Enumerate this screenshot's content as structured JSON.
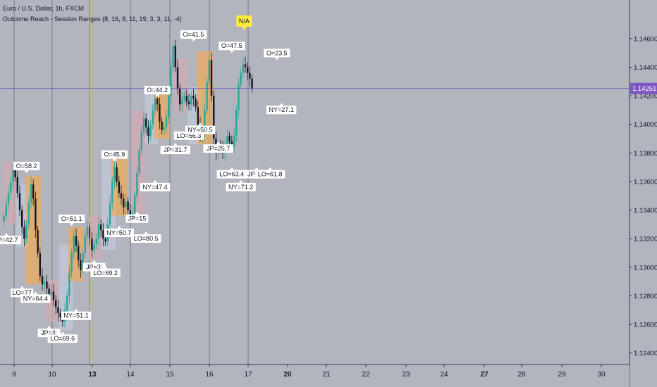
{
  "header": {
    "symbol": "Euro / U.S. Dollar, 1h, FXCM",
    "indicator": "Outcome Reach - Session Ranges (8, 16, 8, 11, 19, 3, 3, 11, -4)"
  },
  "price_tag": {
    "value": "1.14251",
    "color": "#7e57c2"
  },
  "colors": {
    "background": "#b2b5be",
    "up_candle": "#26a69a",
    "down_candle": "#131722",
    "asia_box": "#d9a8b0",
    "london_box": "#c3cee3",
    "ny_box": "#f0a95a",
    "cursor_h": "#5b4cc4",
    "cursor_v": "#f2c94c"
  },
  "chart_data": {
    "type": "candlestick",
    "y_ticks": [
      "1.14600",
      "1.14400",
      "1.14200",
      "1.14000",
      "1.13800",
      "1.13600",
      "1.13400",
      "1.13200",
      "1.13000",
      "1.12800",
      "1.12600",
      "1.12400"
    ],
    "x_ticks": [
      "9",
      "10",
      "13",
      "14",
      "15",
      "16",
      "17",
      "20",
      "21",
      "22",
      "23",
      "24",
      "27",
      "28",
      "29",
      "30"
    ],
    "bold_x_ticks": [
      "13",
      "20",
      "27"
    ],
    "ylim": [
      1.1232,
      1.1487
    ],
    "close_price": 1.14251,
    "closes": [
      1.1336,
      1.1344,
      1.1352,
      1.136,
      1.1368,
      1.1363,
      1.1352,
      1.134,
      1.1328,
      1.132,
      1.133,
      1.1345,
      1.1358,
      1.1348,
      1.1326,
      1.131,
      1.1294,
      1.1288,
      1.129,
      1.1285,
      1.128,
      1.1283,
      1.1277,
      1.1272,
      1.1268,
      1.1265,
      1.1262,
      1.127,
      1.128,
      1.1296,
      1.131,
      1.1322,
      1.1315,
      1.1305,
      1.1298,
      1.131,
      1.1322,
      1.1328,
      1.132,
      1.1312,
      1.1316,
      1.132,
      1.133,
      1.1326,
      1.132,
      1.1318,
      1.133,
      1.1345,
      1.136,
      1.137,
      1.136,
      1.1352,
      1.1348,
      1.1342,
      1.1346,
      1.134,
      1.1337,
      1.1338,
      1.135,
      1.1366,
      1.1382,
      1.1395,
      1.1404,
      1.1398,
      1.1392,
      1.14,
      1.141,
      1.1418,
      1.1414,
      1.1402,
      1.1396,
      1.1398,
      1.1405,
      1.142,
      1.144,
      1.1455,
      1.144,
      1.1425,
      1.1414,
      1.1418,
      1.142,
      1.1416,
      1.1414,
      1.142,
      1.1418,
      1.1412,
      1.14,
      1.1392,
      1.1396,
      1.141,
      1.143,
      1.1445,
      1.142,
      1.139,
      1.138,
      1.1385,
      1.1383,
      1.138,
      1.1386,
      1.1392,
      1.1388,
      1.1384,
      1.1392,
      1.141,
      1.1428,
      1.1436,
      1.1442,
      1.144,
      1.1436,
      1.1432,
      1.1425
    ],
    "day_boundaries_x": [
      20,
      74,
      127,
      185,
      241,
      297,
      352
    ],
    "session_labels": [
      {
        "text": "O=58.2",
        "bar": 10,
        "y": 1.1365,
        "side": "above"
      },
      {
        "text": "JP=42.7",
        "bar": 1,
        "y": 1.1325,
        "side": "below"
      },
      {
        "text": "LO=77",
        "bar": 8,
        "y": 1.1288,
        "side": "below"
      },
      {
        "text": "NY=64.4",
        "bar": 14,
        "y": 1.1284,
        "side": "below"
      },
      {
        "text": "JP=3;",
        "bar": 20,
        "y": 1.126,
        "side": "below"
      },
      {
        "text": "LO=69.6",
        "bar": 26,
        "y": 1.1256,
        "side": "below"
      },
      {
        "text": "O=51.1",
        "bar": 30,
        "y": 1.1328,
        "side": "above"
      },
      {
        "text": "NY=51.1",
        "bar": 32,
        "y": 1.1272,
        "side": "below"
      },
      {
        "text": "JP=3;",
        "bar": 40,
        "y": 1.1306,
        "side": "below"
      },
      {
        "text": "LO=69.2",
        "bar": 45,
        "y": 1.1302,
        "side": "below"
      },
      {
        "text": "NY=50.7",
        "bar": 51,
        "y": 1.133,
        "side": "below"
      },
      {
        "text": "O=45.9",
        "bar": 49,
        "y": 1.1373,
        "side": "above"
      },
      {
        "text": "JP=15",
        "bar": 59,
        "y": 1.134,
        "side": "below"
      },
      {
        "text": "LO=80.5",
        "bar": 63,
        "y": 1.1326,
        "side": "below"
      },
      {
        "text": "NY=47.4",
        "bar": 67,
        "y": 1.1362,
        "side": "below"
      },
      {
        "text": "O=44.2",
        "bar": 68,
        "y": 1.1418,
        "side": "above"
      },
      {
        "text": "JP=31.7",
        "bar": 76,
        "y": 1.1388,
        "side": "below"
      },
      {
        "text": "LO=56.3",
        "bar": 82,
        "y": 1.1398,
        "side": "below"
      },
      {
        "text": "NY=50.5",
        "bar": 87,
        "y": 1.1402,
        "side": "below"
      },
      {
        "text": "O=41.5",
        "bar": 84,
        "y": 1.1457,
        "side": "above"
      },
      {
        "text": "JP=25.7",
        "bar": 95,
        "y": 1.1389,
        "side": "below"
      },
      {
        "text": "O=47.5",
        "bar": 101,
        "y": 1.1449,
        "side": "above"
      },
      {
        "text": "LO=63.4",
        "bar": 101,
        "y": 1.1371,
        "side": "below"
      },
      {
        "text": "NY=71.2",
        "bar": 105,
        "y": 1.1362,
        "side": "below"
      },
      {
        "text": "JP=15",
        "bar": 112,
        "y": 1.1371,
        "side": "below"
      },
      {
        "text": "LO=61.8",
        "bar": 118,
        "y": 1.1371,
        "side": "below"
      },
      {
        "text": "O=23.5",
        "bar": 121,
        "y": 1.1444,
        "side": "above"
      },
      {
        "text": "NY=27.1",
        "bar": 123,
        "y": 1.1416,
        "side": "below"
      }
    ],
    "na_label": "N/A"
  }
}
